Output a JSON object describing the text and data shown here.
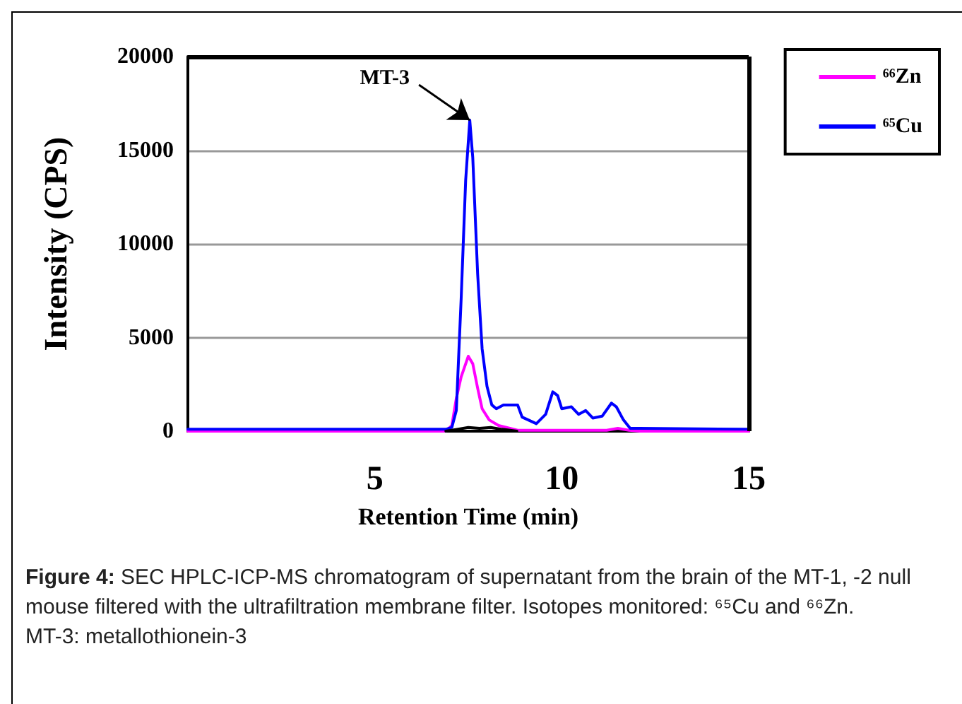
{
  "chart_data": {
    "type": "line",
    "xlabel": "Retention Time (min)",
    "ylabel": "Intensity (CPS)",
    "xlim": [
      0,
      15
    ],
    "xticks": [
      5,
      10,
      15
    ],
    "ylim": [
      0,
      20000
    ],
    "yticks": [
      0,
      5000,
      10000,
      15000,
      20000
    ],
    "grid": "y",
    "legend": "top right",
    "marker": "none",
    "line_style": "solid",
    "annotations": [
      {
        "text": "MT-3",
        "x": 7.54,
        "y": 16600
      },
      "Figure 4: SEC HPLC-ICP-MS chromatogram of supernatant from the brain of the MT-1, -2 null mouse filtered with the ultrafiltration membrane filter. Isotopes monitored: ⁶⁵Cu and ⁶⁶Zn.",
      "MT-3: metallothionein-3"
    ],
    "series": [
      {
        "color": "#000000",
        "x": [
          6.9,
          7.2,
          7.5,
          7.8,
          8.1,
          8.4,
          8.8
        ],
        "values": [
          0,
          100,
          200,
          150,
          200,
          100,
          0
        ]
      },
      {
        "name": "⁶⁶Zn",
        "color": "#ff00ff",
        "x": [
          0,
          6.9,
          7.06,
          7.18,
          7.31,
          7.5,
          7.62,
          7.75,
          7.87,
          8.06,
          8.31,
          8.82,
          11.2,
          11.5,
          11.8,
          12.1,
          15
        ],
        "values": [
          0,
          0,
          300,
          1750,
          2900,
          4000,
          3600,
          2300,
          1200,
          600,
          300,
          50,
          50,
          150,
          50,
          0,
          0
        ]
      },
      {
        "name": "⁶⁵Cu",
        "color": "#0000ff",
        "x": [
          0,
          6.9,
          7.06,
          7.18,
          7.31,
          7.43,
          7.54,
          7.62,
          7.75,
          7.87,
          8.0,
          8.13,
          8.25,
          8.44,
          8.63,
          8.82,
          8.94,
          9.32,
          9.57,
          9.76,
          9.89,
          10.0,
          10.26,
          10.45,
          10.64,
          10.83,
          11.08,
          11.33,
          11.46,
          11.65,
          11.83,
          12.08,
          15
        ],
        "values": [
          100,
          100,
          200,
          1100,
          7100,
          13400,
          16600,
          14600,
          8400,
          4400,
          2400,
          1400,
          1200,
          1400,
          1400,
          1400,
          750,
          400,
          900,
          2100,
          1900,
          1200,
          1300,
          900,
          1100,
          700,
          800,
          1500,
          1300,
          600,
          150,
          150,
          100
        ]
      }
    ]
  }
}
